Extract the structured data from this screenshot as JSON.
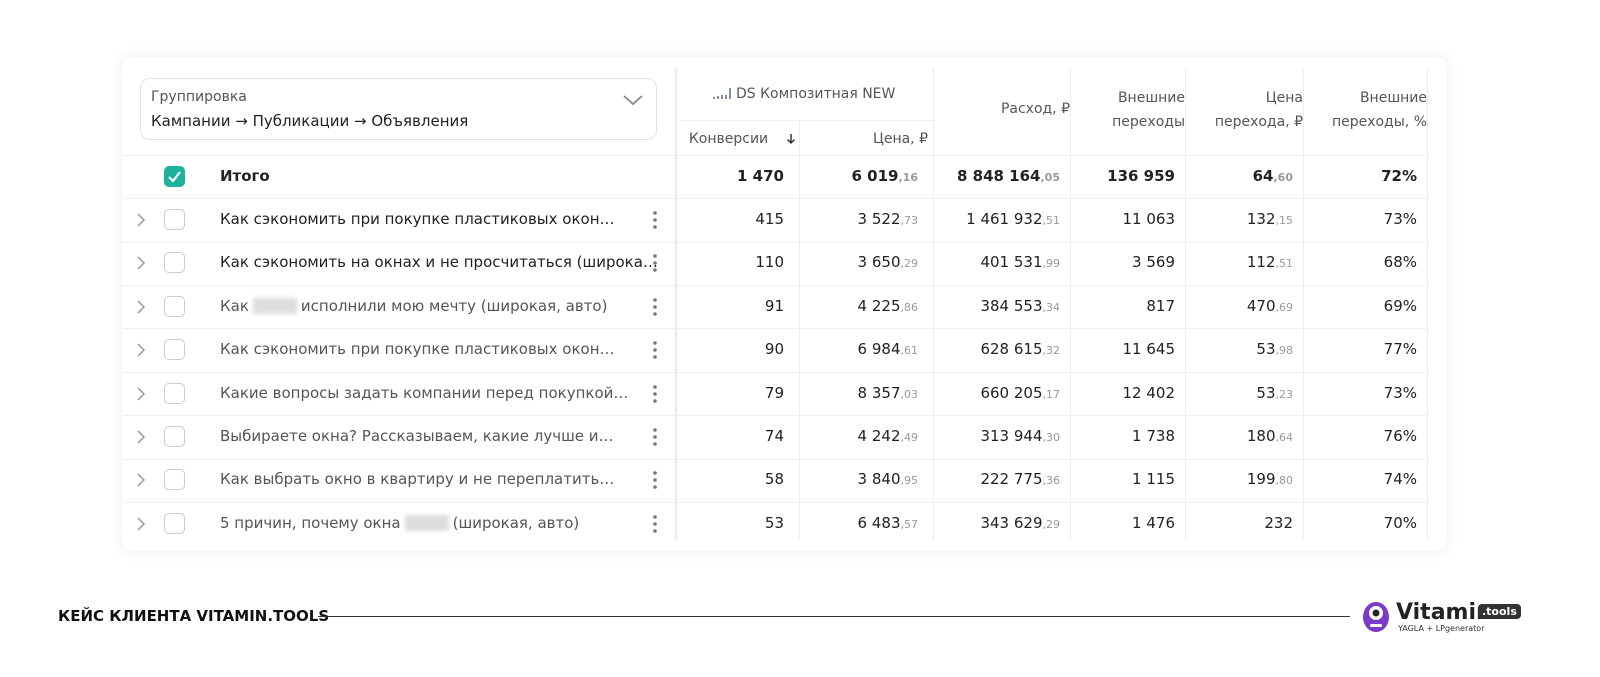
{
  "header": {
    "group_label": "Группировка",
    "group_value": "Кампании → Публикации → Объявления",
    "goal": "DS Композитная NEW",
    "columns": [
      "Конверсии",
      "Цена, ₽",
      "Расход, ₽",
      "Внешние переходы",
      "Цена перехода, ₽",
      "Внешние переходы, %"
    ]
  },
  "total": {
    "label": "Итого",
    "conversions": "1 470",
    "price": {
      "int": "6 019",
      "frac": ",16"
    },
    "spend": {
      "int": "8 848 164",
      "frac": ",05"
    },
    "clicks": "136 959",
    "cpc": {
      "int": "64",
      "frac": ",60"
    },
    "share": "72%"
  },
  "rows": [
    {
      "name": [
        "Как сэкономить при покупке пластиковых окон…"
      ],
      "conversions": "415",
      "price": {
        "int": "3 522",
        "frac": ",73"
      },
      "spend": {
        "int": "1 461 932",
        "frac": ",51"
      },
      "clicks": "11 063",
      "cpc": {
        "int": "132",
        "frac": ",15"
      },
      "share": "73%"
    },
    {
      "name": [
        "Как сэкономить на окнах и не просчитаться (широка…"
      ],
      "conversions": "110",
      "price": {
        "int": "3 650",
        "frac": ",29"
      },
      "spend": {
        "int": "401 531",
        "frac": ",99"
      },
      "clicks": "3 569",
      "cpc": {
        "int": "112",
        "frac": ",51"
      },
      "share": "68%"
    },
    {
      "name": [
        "Как",
        "исполнили мою мечту (широкая, авто)"
      ],
      "conversions": "91",
      "price": {
        "int": "4 225",
        "frac": ",86"
      },
      "spend": {
        "int": "384 553",
        "frac": ",34"
      },
      "clicks": "817",
      "cpc": {
        "int": "470",
        "frac": ",69"
      },
      "share": "69%"
    },
    {
      "name": [
        "Как сэкономить при покупке пластиковых окон…"
      ],
      "conversions": "90",
      "price": {
        "int": "6 984",
        "frac": ",61"
      },
      "spend": {
        "int": "628 615",
        "frac": ",32"
      },
      "clicks": "11 645",
      "cpc": {
        "int": "53",
        "frac": ",98"
      },
      "share": "77%"
    },
    {
      "name": [
        "Какие вопросы задать компании перед покупкой…"
      ],
      "conversions": "79",
      "price": {
        "int": "8 357",
        "frac": ",03"
      },
      "spend": {
        "int": "660 205",
        "frac": ",17"
      },
      "clicks": "12 402",
      "cpc": {
        "int": "53",
        "frac": ",23"
      },
      "share": "73%"
    },
    {
      "name": [
        "Выбираете окна? Рассказываем, какие лучше и…"
      ],
      "conversions": "74",
      "price": {
        "int": "4 242",
        "frac": ",49"
      },
      "spend": {
        "int": "313 944",
        "frac": ",30"
      },
      "clicks": "1 738",
      "cpc": {
        "int": "180",
        "frac": ",64"
      },
      "share": "76%"
    },
    {
      "name": [
        "Как выбрать окно в квартиру и не переплатить…"
      ],
      "conversions": "58",
      "price": {
        "int": "3 840",
        "frac": ",95"
      },
      "spend": {
        "int": "222 775",
        "frac": ",36"
      },
      "clicks": "1 115",
      "cpc": {
        "int": "199",
        "frac": ",80"
      },
      "share": "74%"
    },
    {
      "name": [
        "5 причин, почему окна",
        "(широкая, авто)"
      ],
      "conversions": "53",
      "price": {
        "int": "6 483",
        "frac": ",57"
      },
      "spend": {
        "int": "343 629",
        "frac": ",29"
      },
      "clicks": "1 476",
      "cpc": {
        "int": "232"
      },
      "share": "70%"
    }
  ],
  "footer": {
    "case": "КЕЙС КЛИЕНТА VITAMIN.TOOLS",
    "logo": "Vitamin",
    "badge": ".tools",
    "partners": "YAGLA + LPgenerator"
  }
}
